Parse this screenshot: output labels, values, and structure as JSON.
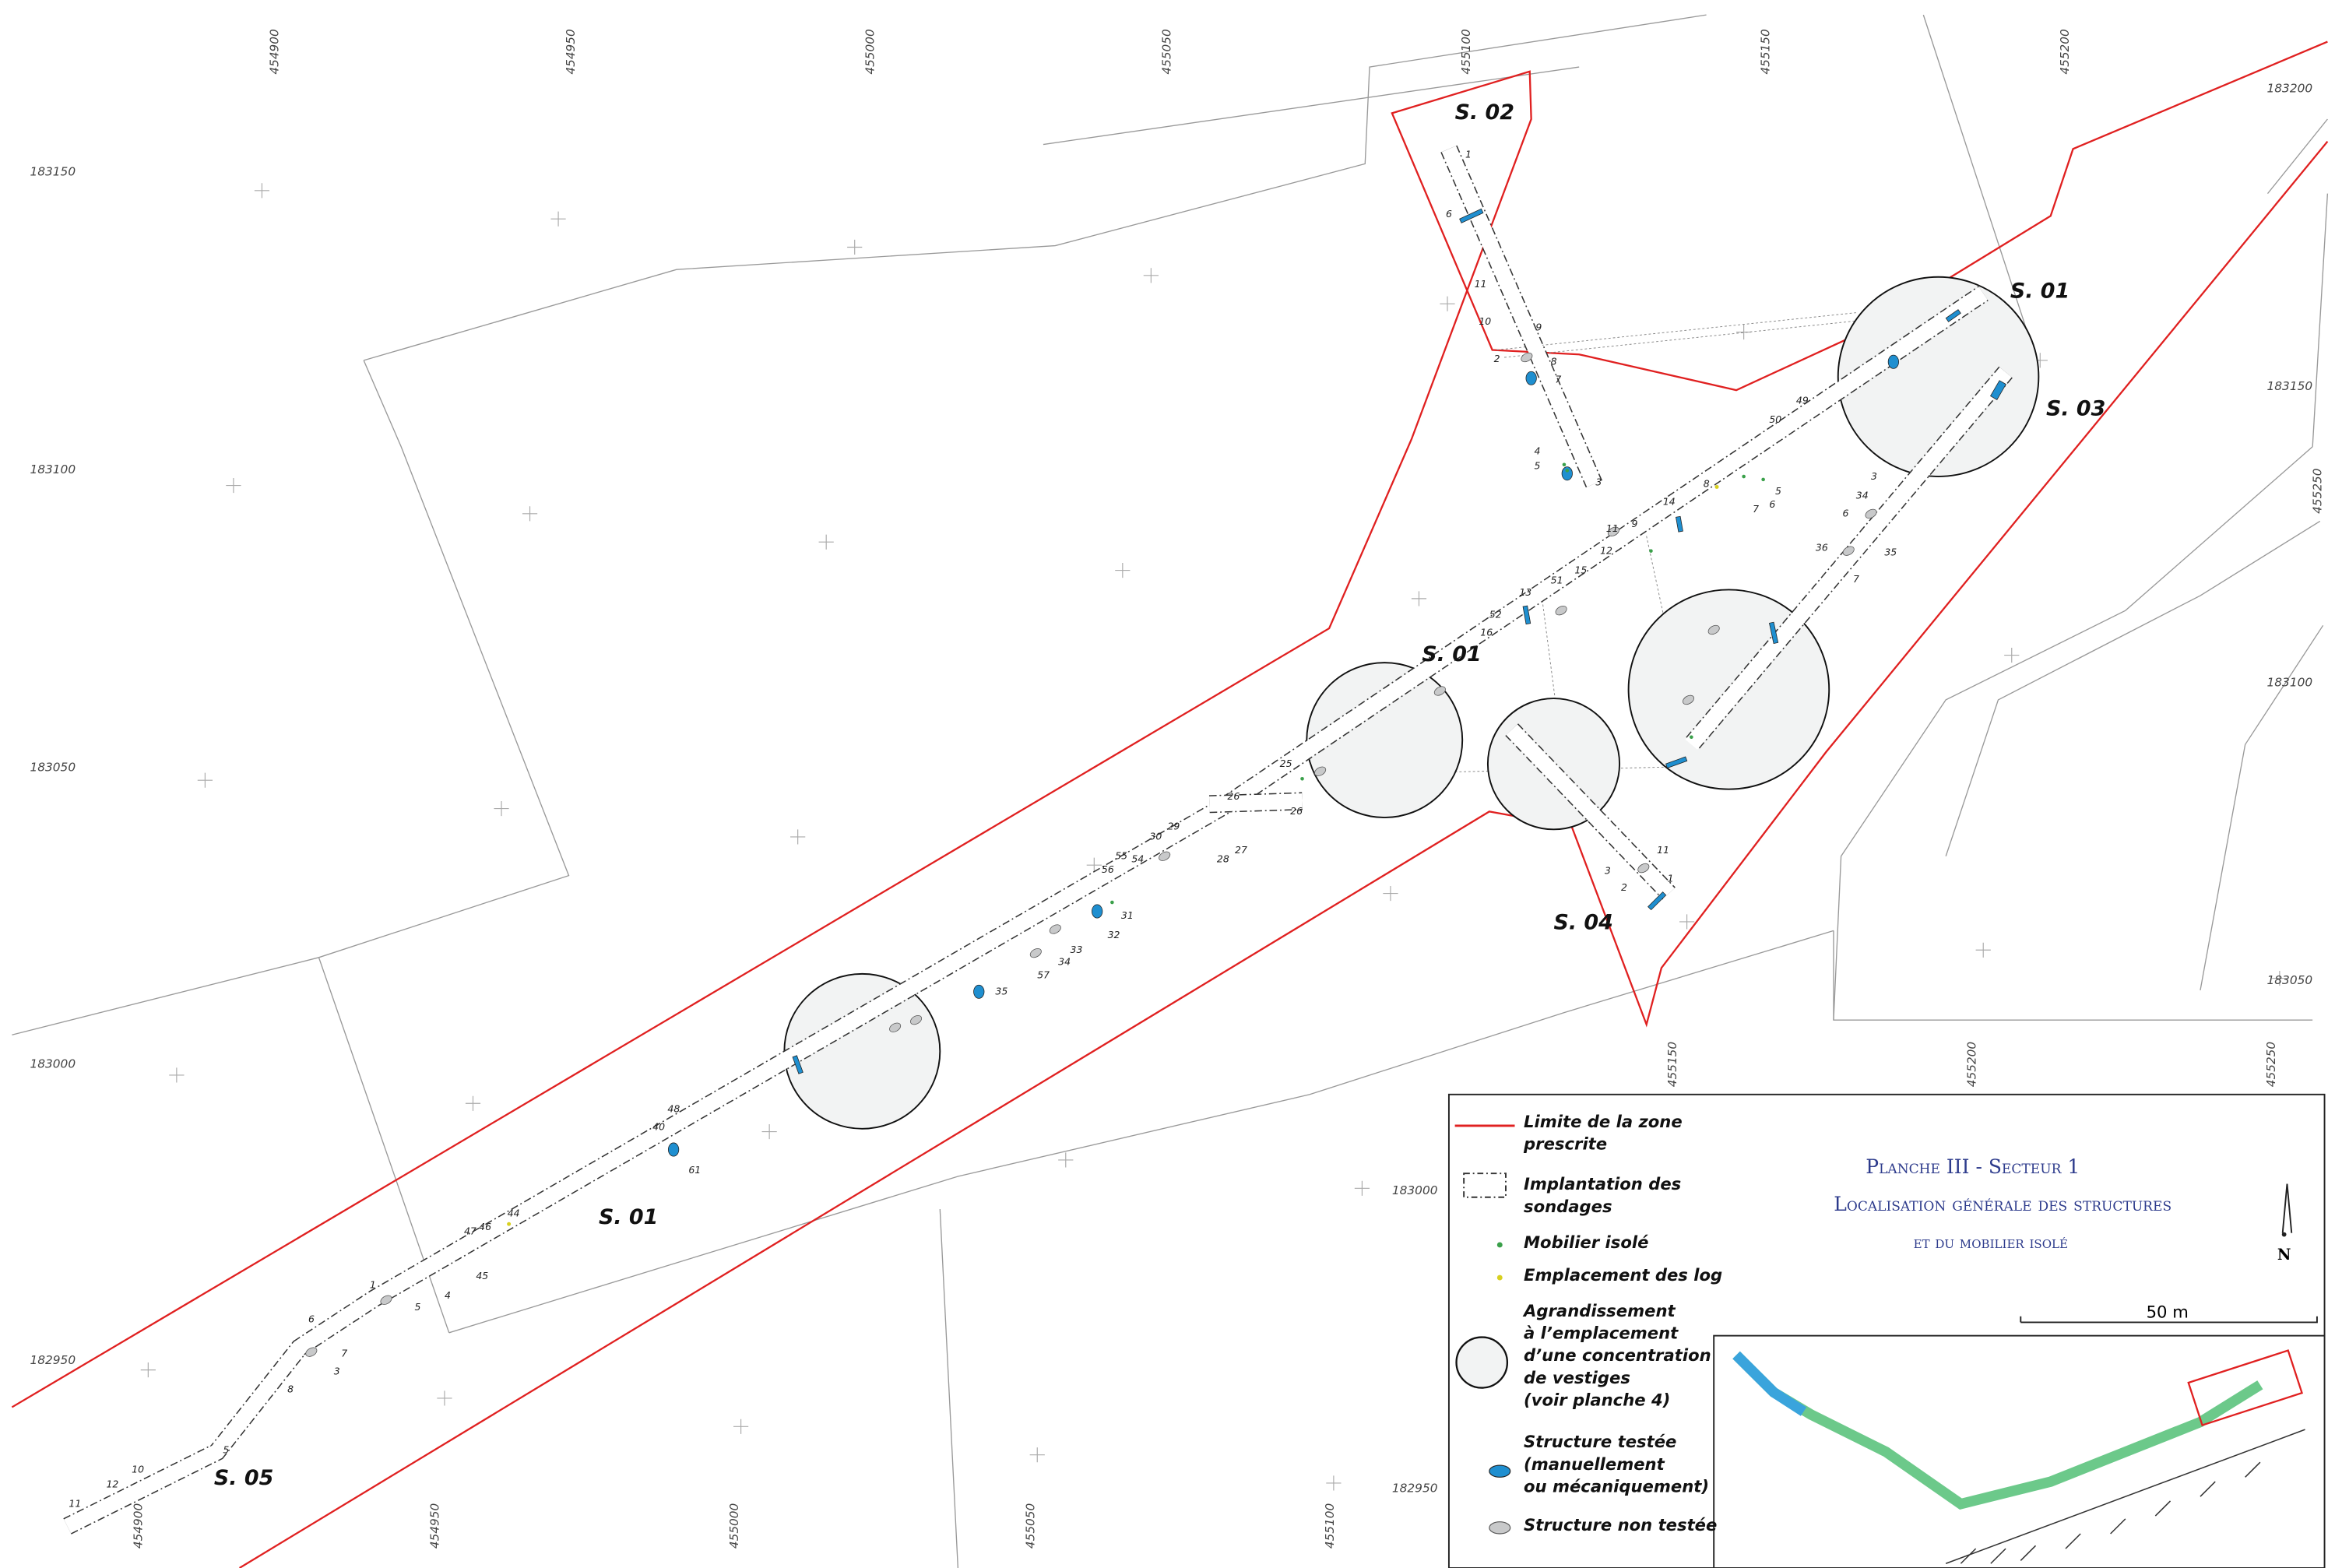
{
  "map": {
    "coords_top": [
      "454900",
      "454950",
      "455000",
      "455050",
      "455100",
      "455150",
      "455200"
    ],
    "coords_left": [
      "183150",
      "183100",
      "183050",
      "183000",
      "182950"
    ],
    "coords_right": [
      "183200",
      "183150",
      "183100",
      "183050"
    ],
    "coords_right_vertical": [
      "455250"
    ],
    "coords_bottom": [
      "454900",
      "454950",
      "455000",
      "455050",
      "455100"
    ],
    "coords_inner_vertical": [
      "455150",
      "455200",
      "455250"
    ],
    "coords_inner": [
      "183000",
      "182950"
    ],
    "sectors": [
      "S. 02",
      "S. 01",
      "S. 03",
      "S. 01",
      "S. 04",
      "S. 01",
      "S. 05"
    ],
    "features": [
      "1",
      "6",
      "11",
      "10",
      "9",
      "2",
      "8",
      "7",
      "4",
      "5",
      "3",
      "49",
      "50",
      "8",
      "5",
      "6",
      "7",
      "14",
      "11",
      "9",
      "12",
      "15",
      "51",
      "13",
      "52",
      "16",
      "25",
      "26",
      "26",
      "29",
      "30",
      "27",
      "28",
      "55",
      "56",
      "54",
      "31",
      "32",
      "33",
      "34",
      "57",
      "35",
      "48",
      "40",
      "61",
      "44",
      "46",
      "47",
      "45",
      "1",
      "4",
      "5",
      "6",
      "7",
      "3",
      "8",
      "5",
      "10",
      "12",
      "11",
      "3",
      "34",
      "6",
      "36",
      "35",
      "7",
      "11",
      "3",
      "2",
      "1"
    ]
  },
  "legend": {
    "items": [
      [
        "Limite de la zone",
        "prescrite"
      ],
      [
        "Implantation des",
        "sondages"
      ],
      [
        "Mobilier isolé"
      ],
      [
        "Emplacement des log"
      ],
      [
        "Agrandissement",
        "à l’emplacement",
        "d’une concentration",
        "de vestiges",
        "(voir planche 4)"
      ],
      [
        "Structure testée",
        "(manuellement",
        "ou mécaniquement)"
      ],
      [
        "Structure non testée"
      ]
    ]
  },
  "title": {
    "lines": [
      "Planche III - Secteur 1",
      "Localisation générale des structures",
      "et du mobilier isolé"
    ]
  },
  "scale": {
    "label": "50 m"
  },
  "north": {
    "label": "N"
  }
}
